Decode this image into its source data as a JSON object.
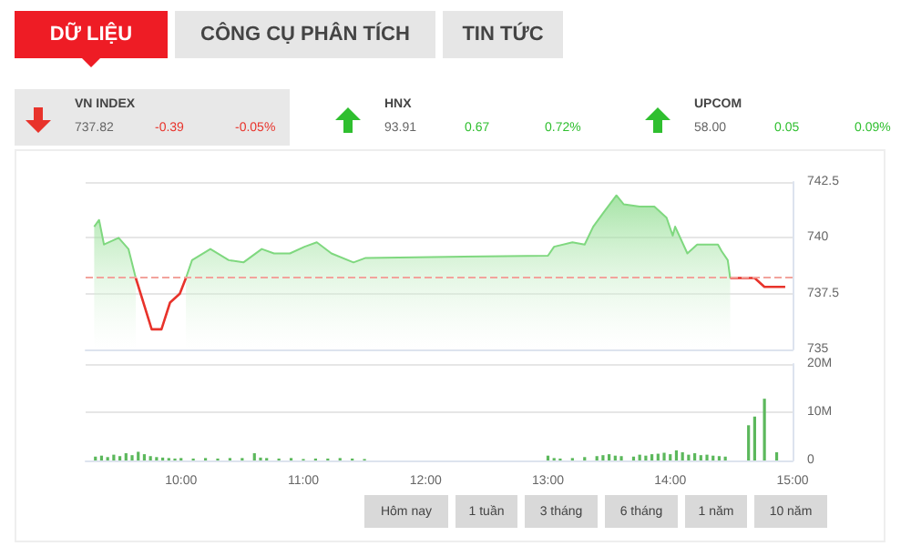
{
  "chart_data": [
    {
      "type": "other",
      "colors": [
        "#e8332b",
        "#2fbf2f",
        "#2fbf2f"
      ],
      "annotations": [
        "DỮ LIỆU",
        "CÔNG CỤ PHÂN TÍCH",
        "TIN TỨC",
        "VN INDEX",
        "737.82",
        "-0.39",
        "-0.05%",
        "HNX",
        "93.91",
        "0.67",
        "0.72%",
        "UPCOM",
        "58.00",
        "0.05",
        "0.09%"
      ]
    },
    {
      "type": "area",
      "marker": "none",
      "grid": "y",
      "tick_labels": "y",
      "xlim": [
        9.22,
        15
      ],
      "ylim": [
        735,
        742.5
      ],
      "yticks": [
        735,
        737.5,
        740,
        742.5
      ],
      "ref_lines": [
        {
          "axis": "y",
          "value": 738.2,
          "color": "#f2a39c",
          "line_style": "dashed"
        }
      ],
      "series": [
        {
          "color": "#7fd87f",
          "x": [
            9.29,
            9.33,
            9.37,
            9.49,
            9.57,
            9.63,
            9.76,
            9.84,
            9.91,
            9.99,
            10.04,
            10.09,
            10.24,
            10.39,
            10.51,
            10.66,
            10.76,
            10.89,
            11.01,
            11.11,
            11.23,
            11.41,
            11.51,
            13.0,
            13.05,
            13.2,
            13.3,
            13.37,
            13.45,
            13.56,
            13.62,
            13.75,
            13.87,
            13.97,
            14.02,
            14.04,
            14.14,
            14.22,
            14.39,
            14.42,
            14.47,
            14.49
          ],
          "values": [
            740.5,
            740.8,
            739.7,
            740.0,
            739.5,
            738.2,
            null,
            null,
            null,
            null,
            738.2,
            739.0,
            739.5,
            739.0,
            738.9,
            739.5,
            739.3,
            739.3,
            739.6,
            739.8,
            739.3,
            738.9,
            739.1,
            739.2,
            739.6,
            739.8,
            739.7,
            740.5,
            741.1,
            741.9,
            741.5,
            741.4,
            741.4,
            740.9,
            740.1,
            740.5,
            739.3,
            739.7,
            739.7,
            739.4,
            739.0,
            738.2
          ]
        },
        {
          "type": "line",
          "color": "#e8332b",
          "x": [
            9.63,
            9.76,
            9.84,
            9.91,
            9.99,
            10.04
          ],
          "values": [
            738.2,
            735.9,
            735.9,
            737.1,
            737.5,
            738.2
          ]
        },
        {
          "type": "line",
          "color": "#e8332b",
          "x": [
            14.49,
            14.69,
            14.77,
            14.94
          ],
          "values": [
            738.2,
            738.2,
            737.8,
            737.8
          ]
        }
      ]
    },
    {
      "type": "bar",
      "grid": "y",
      "color": "#5cb85c",
      "xlim": [
        9.22,
        15
      ],
      "xticks": [
        {
          "value": 10,
          "label": "10:00"
        },
        {
          "value": 11,
          "label": "11:00"
        },
        {
          "value": 12,
          "label": "12:00"
        },
        {
          "value": 13,
          "label": "13:00"
        },
        {
          "value": 14,
          "label": "14:00"
        },
        {
          "value": 15,
          "label": "15:00"
        }
      ],
      "ylim": [
        0,
        20
      ],
      "yticks": [
        0,
        {
          "value": 10,
          "label": "10M"
        },
        {
          "value": 20,
          "label": "20M"
        }
      ],
      "x": [
        9.3,
        9.35,
        9.4,
        9.45,
        9.5,
        9.55,
        9.6,
        9.65,
        9.7,
        9.75,
        9.8,
        9.85,
        9.9,
        9.95,
        10.0,
        10.1,
        10.2,
        10.3,
        10.4,
        10.5,
        10.6,
        10.65,
        10.7,
        10.8,
        10.9,
        11.0,
        11.1,
        11.2,
        11.3,
        11.4,
        11.5,
        13.0,
        13.05,
        13.1,
        13.2,
        13.3,
        13.4,
        13.45,
        13.5,
        13.55,
        13.6,
        13.7,
        13.75,
        13.8,
        13.85,
        13.9,
        13.95,
        14.0,
        14.05,
        14.1,
        14.15,
        14.2,
        14.25,
        14.3,
        14.35,
        14.4,
        14.45,
        14.64,
        14.69,
        14.77,
        14.87
      ],
      "values": [
        0.8,
        1.0,
        0.7,
        1.2,
        0.9,
        1.5,
        1.1,
        1.8,
        1.3,
        0.9,
        0.7,
        0.6,
        0.5,
        0.4,
        0.5,
        0.4,
        0.5,
        0.4,
        0.5,
        0.5,
        1.5,
        0.6,
        0.5,
        0.4,
        0.5,
        0.3,
        0.4,
        0.4,
        0.5,
        0.4,
        0.3,
        1.0,
        0.5,
        0.4,
        0.5,
        0.7,
        0.9,
        1.1,
        1.3,
        1.0,
        0.9,
        0.8,
        1.2,
        1.0,
        1.3,
        1.4,
        1.6,
        1.3,
        2.1,
        1.7,
        1.2,
        1.5,
        1.1,
        1.2,
        1.0,
        0.9,
        0.8,
        7.3,
        9.1,
        12.8,
        1.7
      ]
    },
    {
      "type": "other",
      "annotations": [
        "Hôm nay",
        "1 tuần",
        "3 tháng",
        "6 tháng",
        "1 năm",
        "10 năm"
      ]
    }
  ]
}
